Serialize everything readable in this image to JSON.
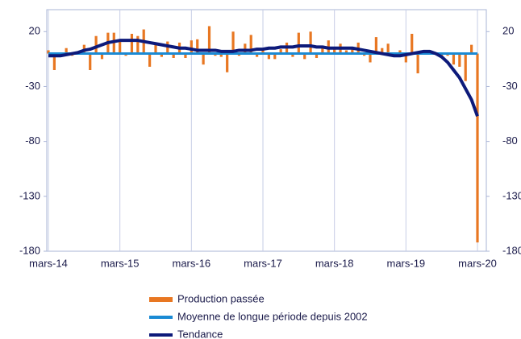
{
  "chart_data": {
    "type": "bar-line",
    "categories": [
      "mars-14",
      null,
      null,
      null,
      null,
      null,
      null,
      null,
      null,
      null,
      null,
      null,
      "mars-15",
      null,
      null,
      null,
      null,
      null,
      null,
      null,
      null,
      null,
      null,
      null,
      "mars-16",
      null,
      null,
      null,
      null,
      null,
      null,
      null,
      null,
      null,
      null,
      null,
      "mars-17",
      null,
      null,
      null,
      null,
      null,
      null,
      null,
      null,
      null,
      null,
      null,
      "mars-18",
      null,
      null,
      null,
      null,
      null,
      null,
      null,
      null,
      null,
      null,
      null,
      "mars-19",
      null,
      null,
      null,
      null,
      null,
      null,
      null,
      null,
      null,
      null,
      null,
      "mars-20"
    ],
    "series": [
      {
        "name": "Production passée",
        "kind": "bar",
        "color": "#e87722",
        "values": [
          3,
          -15,
          -3,
          5,
          -2,
          2,
          8,
          -15,
          16,
          -5,
          19,
          19,
          13,
          -2,
          18,
          16,
          22,
          -12,
          8,
          -3,
          11,
          -4,
          10,
          -4,
          12,
          13,
          -10,
          25,
          -2,
          -3,
          -17,
          20,
          -2,
          9,
          17,
          -3,
          5,
          -5,
          -5,
          4,
          10,
          -3,
          19,
          -5,
          20,
          -4,
          5,
          12,
          4,
          9,
          3,
          4,
          10,
          -2,
          -8,
          15,
          5,
          9,
          -3,
          3,
          -8,
          18,
          -18,
          2,
          3,
          0,
          -3,
          -2,
          -10,
          -12,
          -25,
          8,
          -172
        ]
      },
      {
        "name": "Moyenne de longue période depuis 2002",
        "kind": "line",
        "color": "#1a8ad4",
        "values": [
          0,
          0,
          0,
          0,
          0,
          0,
          0,
          0,
          0,
          0,
          0,
          0,
          0,
          0,
          0,
          0,
          0,
          0,
          0,
          0,
          0,
          0,
          0,
          0,
          0,
          0,
          0,
          0,
          0,
          0,
          0,
          0,
          0,
          0,
          0,
          0,
          0,
          0,
          0,
          0,
          0,
          0,
          0,
          0,
          0,
          0,
          0,
          0,
          0,
          0,
          0,
          0,
          0,
          0,
          0,
          0,
          0,
          0,
          0,
          0,
          0,
          0,
          0,
          0,
          0,
          0,
          0,
          0,
          0,
          0,
          0,
          0,
          0
        ]
      },
      {
        "name": "Tendance",
        "kind": "line",
        "color": "#0d1a7a",
        "values": [
          -2,
          -2,
          -2,
          -1,
          0,
          1,
          3,
          4,
          6,
          8,
          10,
          11,
          12,
          12,
          12,
          12,
          11,
          10,
          9,
          8,
          7,
          6,
          5,
          5,
          4,
          3,
          3,
          3,
          3,
          2,
          2,
          2,
          3,
          3,
          3,
          4,
          4,
          5,
          5,
          6,
          6,
          6,
          7,
          7,
          7,
          6,
          6,
          5,
          5,
          5,
          5,
          5,
          4,
          3,
          2,
          1,
          0,
          -1,
          -2,
          -2,
          -1,
          0,
          1,
          2,
          2,
          0,
          -3,
          -8,
          -15,
          -22,
          -32,
          -42,
          -57
        ]
      }
    ],
    "ylim": [
      -180,
      40
    ],
    "yticks": [
      -180,
      -130,
      -80,
      -30,
      20
    ],
    "y2lim": [
      -180,
      40
    ],
    "y2ticks": [
      -180,
      -130,
      -80,
      -30,
      20
    ],
    "legend": "bottom"
  }
}
